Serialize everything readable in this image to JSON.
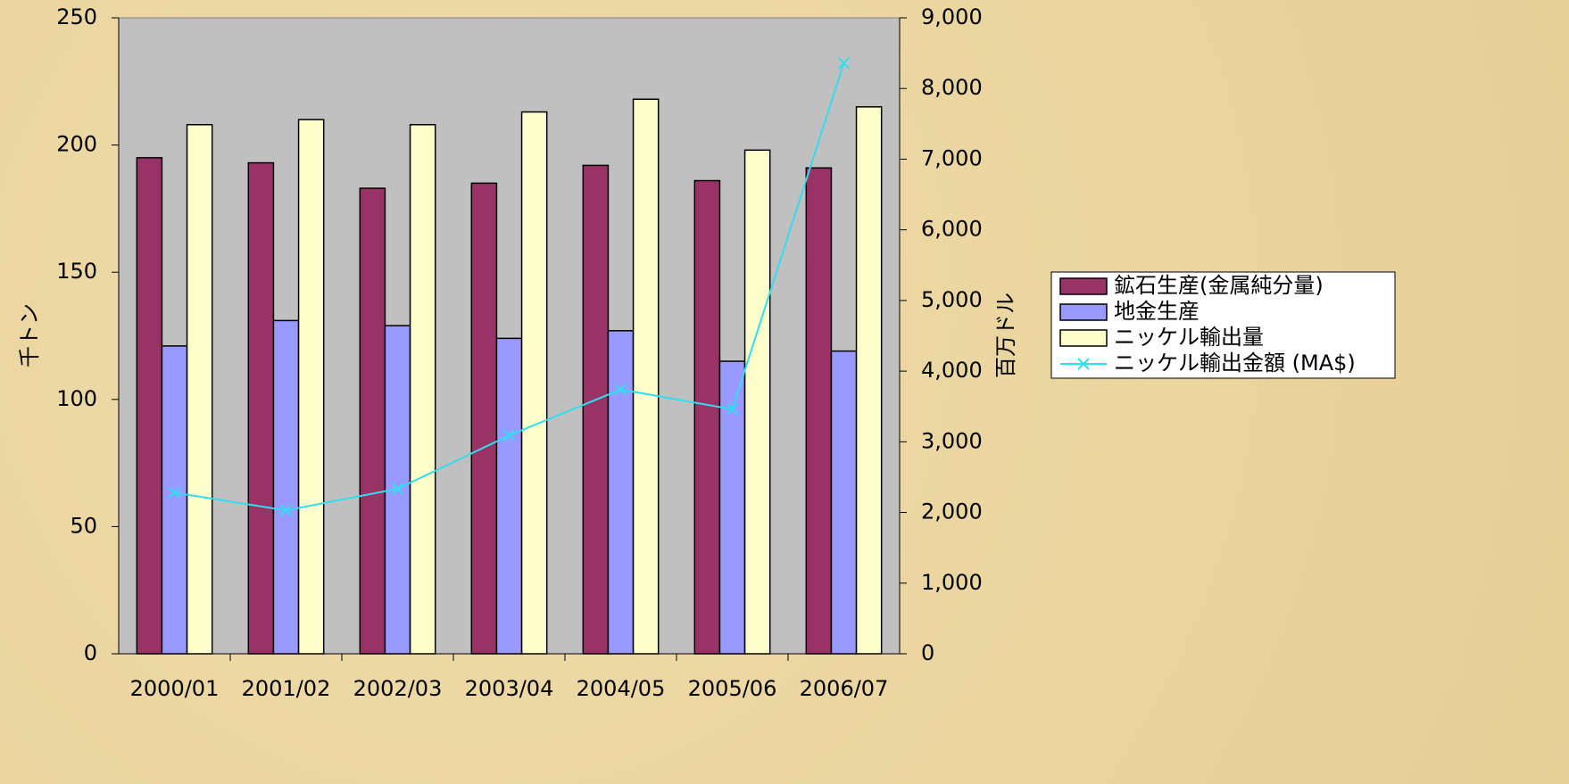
{
  "chart_data": {
    "type": "bar",
    "categories": [
      "2000/01",
      "2001/02",
      "2002/03",
      "2003/04",
      "2004/05",
      "2005/06",
      "2006/07"
    ],
    "ylabel": "千トン",
    "y2label": "百万ドル",
    "ylim": [
      0,
      250
    ],
    "yticks": [
      0,
      50,
      100,
      150,
      200,
      250
    ],
    "y2lim": [
      0,
      9000
    ],
    "y2ticks": [
      0,
      {
        "value": 1000,
        "label": "1,000"
      },
      {
        "value": 2000,
        "label": "2,000"
      },
      {
        "value": 3000,
        "label": "3,000"
      },
      {
        "value": 4000,
        "label": "4,000"
      },
      {
        "value": 5000,
        "label": "5,000"
      },
      {
        "value": 6000,
        "label": "6,000"
      },
      {
        "value": 7000,
        "label": "7,000"
      },
      {
        "value": 8000,
        "label": "8,000"
      },
      {
        "value": 9000,
        "label": "9,000"
      }
    ],
    "series": [
      {
        "name": "鉱石生産(金属純分量)",
        "color": "#993366",
        "type": "bar",
        "values": [
          195,
          193,
          183,
          185,
          192,
          186,
          191
        ]
      },
      {
        "name": "地金生産",
        "color": "#9999ff",
        "type": "bar",
        "values": [
          121,
          131,
          129,
          124,
          127,
          115,
          119
        ]
      },
      {
        "name": "ニッケル輸出量",
        "color": "#ffffcc",
        "type": "bar",
        "values": [
          208,
          210,
          208,
          213,
          218,
          198,
          215
        ]
      },
      {
        "name": "ニッケル輸出金額 (MA$)",
        "color": "#33ddee",
        "type": "line",
        "axis": "y2",
        "values": [
          2280,
          2030,
          2335,
          3090,
          3740,
          3460,
          8360
        ]
      }
    ]
  }
}
